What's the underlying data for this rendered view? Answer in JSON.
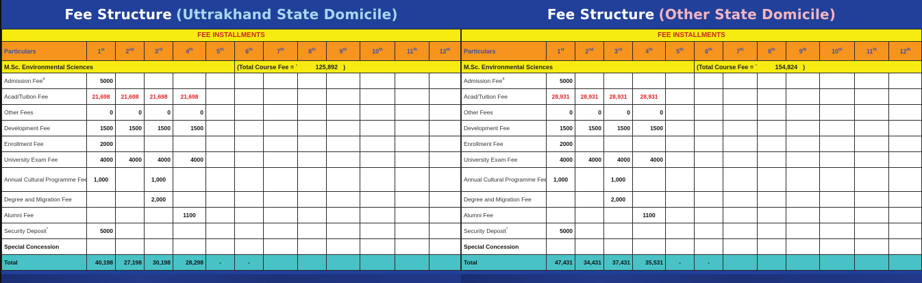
{
  "columns": {
    "particulars": "Particulars",
    "installments": [
      {
        "num": "1",
        "suffix": "st"
      },
      {
        "num": "2",
        "suffix": "nd"
      },
      {
        "num": "3",
        "suffix": "rd"
      },
      {
        "num": "4",
        "suffix": "th"
      },
      {
        "num": "5",
        "suffix": "th"
      },
      {
        "num": "6",
        "suffix": "th"
      },
      {
        "num": "7",
        "suffix": "th"
      },
      {
        "num": "8",
        "suffix": "th"
      },
      {
        "num": "9",
        "suffix": "th"
      },
      {
        "num": "10",
        "suffix": "th"
      },
      {
        "num": "11",
        "suffix": "th"
      },
      {
        "num": "12",
        "suffix": "th"
      }
    ]
  },
  "tables": [
    {
      "title_main": "Fee Structure",
      "title_sub": "(Uttrakhand State Domicile)",
      "installments_label": "FEE INSTALLMENTS",
      "course_name": "M.Sc. Environmental Sciences",
      "course_total_label": "(Total Course Fee = `",
      "course_total_value": "125,892",
      "course_total_close": ")",
      "rows": [
        {
          "label": "Admission Fee",
          "sup": "#",
          "values": [
            "5000",
            "",
            "",
            "",
            "",
            "",
            "",
            "",
            "",
            "",
            "",
            ""
          ]
        },
        {
          "label": "Acad/Tuition  Fee",
          "sup": "",
          "red": true,
          "values": [
            "21,698",
            "21,698",
            "21,698",
            "21,698",
            "",
            "",
            "",
            "",
            "",
            "",
            "",
            ""
          ]
        },
        {
          "label": "Other Fees",
          "sup": "",
          "values": [
            "0",
            "0",
            "0",
            "0",
            "",
            "",
            "",
            "",
            "",
            "",
            "",
            ""
          ]
        },
        {
          "label": "Development Fee",
          "sup": "",
          "values": [
            "1500",
            "1500",
            "1500",
            "1500",
            "",
            "",
            "",
            "",
            "",
            "",
            "",
            ""
          ]
        },
        {
          "label": "Enrollment Fee",
          "sup": "",
          "values": [
            "2000",
            "",
            "",
            "",
            "",
            "",
            "",
            "",
            "",
            "",
            "",
            ""
          ]
        },
        {
          "label": "University Exam Fee",
          "sup": "",
          "values": [
            "4000",
            "4000",
            "4000",
            "4000",
            "",
            "",
            "",
            "",
            "",
            "",
            "",
            ""
          ]
        },
        {
          "label": "Annual Cultural Programme Fee",
          "sup": "",
          "tall": true,
          "values": [
            "1,000",
            "",
            "1,000",
            "",
            "",
            "",
            "",
            "",
            "",
            "",
            "",
            ""
          ]
        },
        {
          "label": "Degree and Migration Fee",
          "sup": "",
          "values": [
            "",
            "",
            "2,000",
            "",
            "",
            "",
            "",
            "",
            "",
            "",
            "",
            ""
          ]
        },
        {
          "label": "Alumni Fee",
          "sup": "",
          "values": [
            "",
            "",
            "",
            "1100",
            "",
            "",
            "",
            "",
            "",
            "",
            "",
            ""
          ]
        },
        {
          "label": "Security Deposit",
          "sup": "*",
          "values": [
            "5000",
            "",
            "",
            "",
            "",
            "",
            "",
            "",
            "",
            "",
            "",
            ""
          ]
        },
        {
          "label": "Special Concession",
          "sup": "",
          "bold": true,
          "values": [
            "",
            "",
            "",
            "",
            "",
            "",
            "",
            "",
            "",
            "",
            "",
            ""
          ]
        }
      ],
      "total": {
        "label": "Total",
        "values": [
          "40,198",
          "27,198",
          "30,198",
          "28,298",
          "-",
          "-",
          "",
          "",
          "",
          "",
          "",
          ""
        ]
      }
    },
    {
      "title_main": "Fee Structure",
      "title_sub": "(Other State Domicile)",
      "installments_label": "FEE INSTALLMENTS",
      "course_name": "M.Sc. Environmental Sciences",
      "course_total_label": "(Total Course Fee = `",
      "course_total_value": "154,824",
      "course_total_close": ")",
      "rows": [
        {
          "label": "Admission Fee",
          "sup": "#",
          "values": [
            "5000",
            "",
            "",
            "",
            "",
            "",
            "",
            "",
            "",
            "",
            "",
            ""
          ]
        },
        {
          "label": "Acad/Tuition  Fee",
          "sup": "",
          "red": true,
          "values": [
            "28,931",
            "28,931",
            "28,931",
            "28,931",
            "",
            "",
            "",
            "",
            "",
            "",
            "",
            ""
          ]
        },
        {
          "label": "Other Fees",
          "sup": "",
          "values": [
            "0",
            "0",
            "0",
            "0",
            "",
            "",
            "",
            "",
            "",
            "",
            "",
            ""
          ]
        },
        {
          "label": "Development Fee",
          "sup": "",
          "values": [
            "1500",
            "1500",
            "1500",
            "1500",
            "",
            "",
            "",
            "",
            "",
            "",
            "",
            ""
          ]
        },
        {
          "label": "Enrollment Fee",
          "sup": "",
          "values": [
            "2000",
            "",
            "",
            "",
            "",
            "",
            "",
            "",
            "",
            "",
            "",
            ""
          ]
        },
        {
          "label": "University Exam Fee",
          "sup": "",
          "values": [
            "4000",
            "4000",
            "4000",
            "4000",
            "",
            "",
            "",
            "",
            "",
            "",
            "",
            ""
          ]
        },
        {
          "label": "Annual Cultural Programme Fee",
          "sup": "",
          "tall": true,
          "values": [
            "1,000",
            "",
            "1,000",
            "",
            "",
            "",
            "",
            "",
            "",
            "",
            "",
            ""
          ]
        },
        {
          "label": "Degree and Migration Fee",
          "sup": "",
          "values": [
            "",
            "",
            "2,000",
            "",
            "",
            "",
            "",
            "",
            "",
            "",
            "",
            ""
          ]
        },
        {
          "label": "Alumni Fee",
          "sup": "",
          "values": [
            "",
            "",
            "",
            "1100",
            "",
            "",
            "",
            "",
            "",
            "",
            "",
            ""
          ]
        },
        {
          "label": "Security Deposit",
          "sup": "*",
          "values": [
            "5000",
            "",
            "",
            "",
            "",
            "",
            "",
            "",
            "",
            "",
            "",
            ""
          ]
        },
        {
          "label": "Special Concession",
          "sup": "",
          "bold": true,
          "values": [
            "",
            "",
            "",
            "",
            "",
            "",
            "",
            "",
            "",
            "",
            "",
            ""
          ]
        }
      ],
      "total": {
        "label": "Total",
        "values": [
          "47,431",
          "34,431",
          "37,431",
          "35,531",
          "-",
          "-",
          "",
          "",
          "",
          "",
          "",
          ""
        ]
      }
    }
  ]
}
